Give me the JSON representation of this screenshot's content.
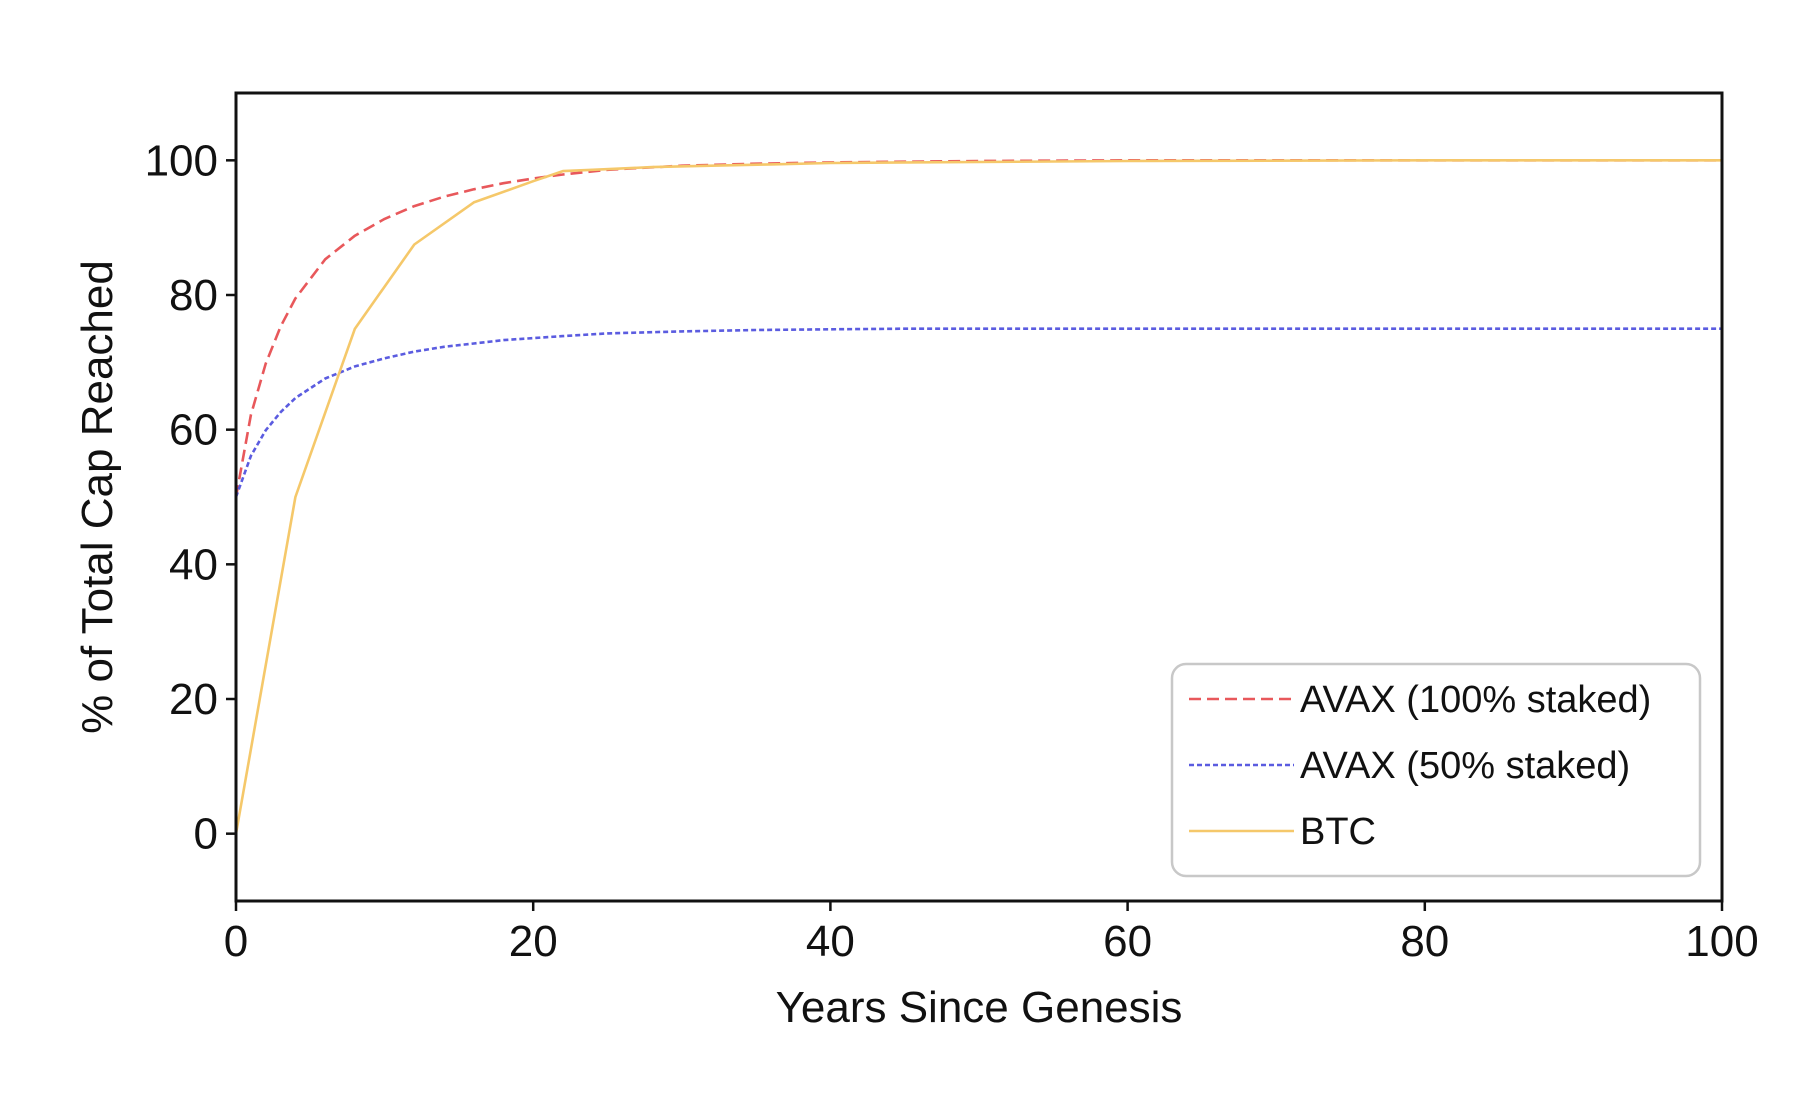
{
  "chart_data": {
    "type": "line",
    "title": "",
    "xlabel": "Years Since Genesis",
    "ylabel": "% of Total Cap Reached",
    "xlim": [
      0,
      100
    ],
    "ylim": [
      -10,
      110
    ],
    "xticks": [
      0,
      20,
      40,
      60,
      80,
      100
    ],
    "yticks": [
      0,
      20,
      40,
      60,
      80,
      100
    ],
    "grid": false,
    "legend_position": "bottom-right",
    "series": [
      {
        "name": "AVAX (100% staked)",
        "color": "#e8585b",
        "style": "dashed",
        "x": [
          0,
          1,
          2,
          3,
          4,
          6,
          8,
          10,
          12,
          14,
          16,
          18,
          20,
          22,
          25,
          30,
          35,
          40,
          45,
          50,
          60,
          70,
          80,
          90,
          100
        ],
        "y": [
          50,
          62.2,
          69.8,
          75.3,
          79.5,
          85.3,
          88.8,
          91.3,
          93.2,
          94.6,
          95.7,
          96.6,
          97.3,
          97.9,
          98.6,
          99.2,
          99.5,
          99.7,
          99.8,
          99.9,
          100,
          100,
          100,
          100,
          100
        ]
      },
      {
        "name": "AVAX (50% staked)",
        "color": "#5b5ce0",
        "style": "dotted",
        "x": [
          0,
          1,
          2,
          3,
          4,
          6,
          8,
          10,
          12,
          14,
          16,
          18,
          20,
          22,
          25,
          30,
          35,
          40,
          45,
          50,
          60,
          70,
          80,
          90,
          100
        ],
        "y": [
          50,
          56.1,
          59.9,
          62.6,
          64.7,
          67.6,
          69.4,
          70.6,
          71.6,
          72.3,
          72.8,
          73.3,
          73.6,
          73.9,
          74.3,
          74.6,
          74.8,
          74.9,
          75,
          75,
          75,
          75,
          75,
          75,
          75
        ]
      },
      {
        "name": "BTC",
        "color": "#f5c86a",
        "style": "solid",
        "x": [
          0,
          4,
          8,
          12,
          16,
          20,
          22,
          24,
          28,
          32,
          36,
          40,
          60,
          80,
          100
        ],
        "y": [
          0,
          50,
          75,
          87.5,
          93.75,
          96.9,
          98.4,
          98.6,
          99,
          99.2,
          99.4,
          99.6,
          99.9,
          100,
          100
        ]
      }
    ]
  }
}
